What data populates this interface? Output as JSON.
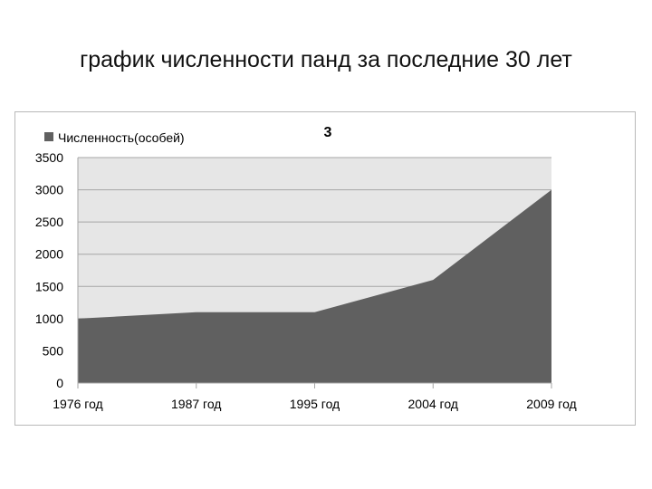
{
  "slide": {
    "title": "график численности панд за последние 30 лет"
  },
  "colors": {
    "area_fill": "#606060",
    "plot_bg": "#e6e6e6",
    "gridline": "#a6a6a6",
    "frame_border": "#b8b8b8"
  },
  "chart_data": {
    "type": "area",
    "title": "3",
    "categories": [
      "1976 год",
      "1987 год",
      "1995 год",
      "2004 год",
      "2009 год"
    ],
    "series": [
      {
        "name": "Численность(особей)",
        "values": [
          1000,
          1100,
          1100,
          1600,
          3000
        ]
      }
    ],
    "ylim": [
      0,
      3500
    ],
    "yticks": [
      0,
      500,
      1000,
      1500,
      2000,
      2500,
      3000,
      3500
    ],
    "grid": true,
    "legend_position": "top-left"
  }
}
